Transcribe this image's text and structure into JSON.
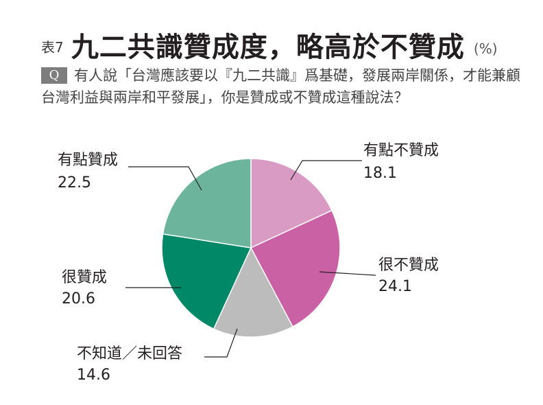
{
  "header": {
    "table_no": "表7",
    "title": "九二共識贊成度，略高於不贊成",
    "unit": "(%)"
  },
  "question": {
    "badge": "Q",
    "text": "有人說「台灣應該要以『九二共識』爲基礎，發展兩岸關係，才能兼顧台灣利益與兩岸和平發展」，你是贊成或不贊成這種說法？"
  },
  "chart_data": {
    "type": "pie",
    "title": "九二共識贊成度，略高於不贊成",
    "unit": "%",
    "slices": [
      {
        "label": "有點不贊成",
        "value": 18.1,
        "color": "#d99bc4"
      },
      {
        "label": "很不贊成",
        "value": 24.1,
        "color": "#c961a4"
      },
      {
        "label": "不知道／未回答",
        "value": 14.6,
        "color": "#bcbcbc"
      },
      {
        "label": "很贊成",
        "value": 20.6,
        "color": "#008867"
      },
      {
        "label": "有點贊成",
        "value": 22.5,
        "color": "#6db49d"
      }
    ],
    "start": "12 o'clock",
    "direction": "clockwise"
  }
}
